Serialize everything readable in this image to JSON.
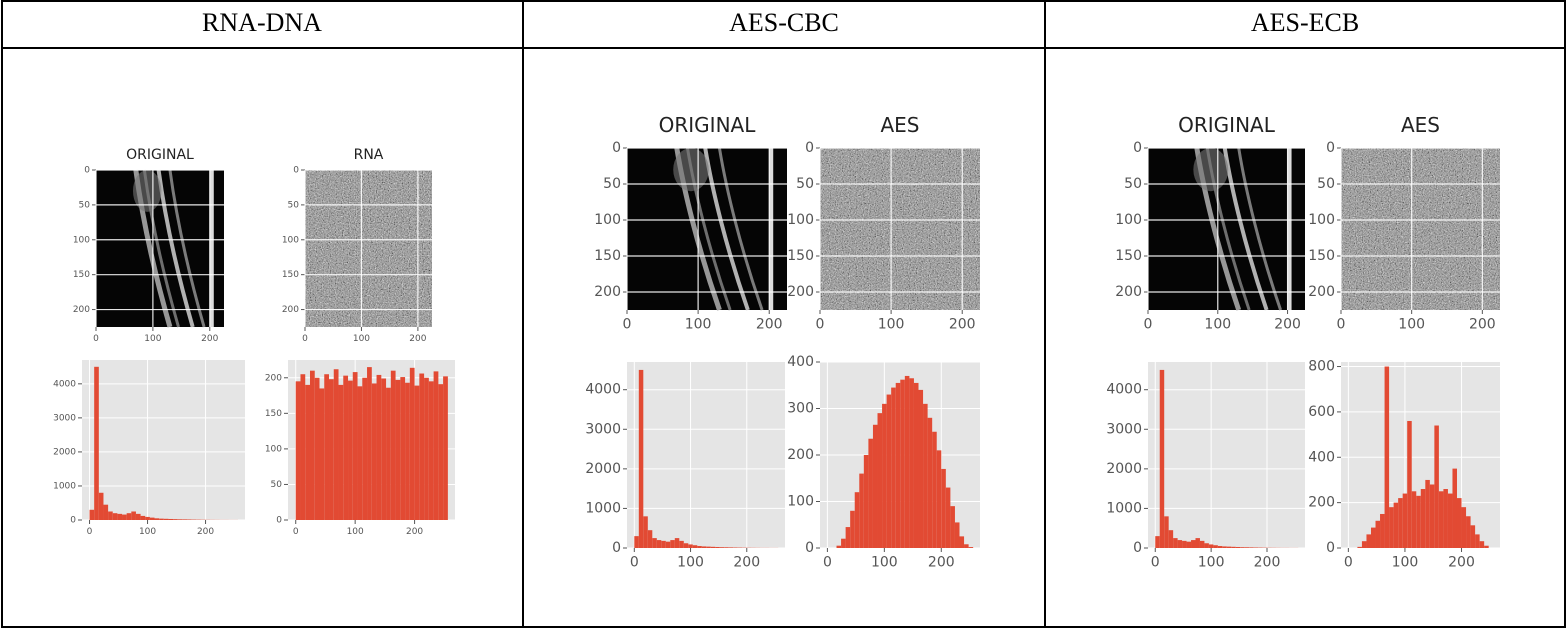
{
  "table": {
    "headers": [
      "RNA-DNA",
      "AES-CBC",
      "AES-ECB"
    ],
    "cells": [
      {
        "images": [
          {
            "title": "ORIGINAL",
            "kind": "original",
            "xlim": [
              0,
              225
            ],
            "ylim": [
              0,
              225
            ],
            "xticks": [
              0,
              100,
              200
            ],
            "yticks": [
              0,
              50,
              100,
              150,
              200
            ]
          },
          {
            "title": "RNA",
            "kind": "noise",
            "xlim": [
              0,
              225
            ],
            "ylim": [
              0,
              225
            ],
            "xticks": [
              0,
              100,
              200
            ],
            "yticks": [
              0,
              50,
              100,
              150,
              200
            ]
          }
        ],
        "histograms": [
          {
            "xlim": [
              -13,
              268
            ],
            "ylim": [
              0,
              4700
            ],
            "xticks": [
              0,
              100,
              200
            ],
            "yticks": [
              0,
              1000,
              2000,
              3000,
              4000
            ],
            "color": "#e24a33",
            "bins": [
              0,
              8,
              16,
              24,
              32,
              40,
              48,
              56,
              64,
              72,
              80,
              88,
              96,
              104,
              112,
              120,
              128,
              136,
              144,
              152,
              160,
              168,
              176,
              184,
              192,
              200,
              208,
              216,
              224,
              232,
              240,
              248,
              256
            ],
            "counts": [
              300,
              4500,
              800,
              450,
              250,
              200,
              180,
              160,
              200,
              250,
              180,
              120,
              90,
              70,
              50,
              40,
              35,
              30,
              25,
              20,
              18,
              15,
              12,
              10,
              8,
              6,
              5,
              4,
              3,
              3,
              2,
              2
            ]
          },
          {
            "xlim": [
              -13,
              268
            ],
            "ylim": [
              0,
              225
            ],
            "xticks": [
              0,
              100,
              200
            ],
            "yticks": [
              0,
              50,
              100,
              150,
              200
            ],
            "color": "#e24a33",
            "bins": [
              0,
              8,
              16,
              24,
              32,
              40,
              48,
              56,
              64,
              72,
              80,
              88,
              96,
              104,
              112,
              120,
              128,
              136,
              144,
              152,
              160,
              168,
              176,
              184,
              192,
              200,
              208,
              216,
              224,
              232,
              240,
              248,
              256
            ],
            "counts": [
              195,
              205,
              190,
              210,
              200,
              185,
              205,
              198,
              212,
              190,
              203,
              196,
              208,
              188,
              200,
              215,
              192,
              204,
              199,
              186,
              210,
              197,
              201,
              193,
              214,
              189,
              206,
              200,
              195,
              209,
              191,
              202
            ]
          }
        ]
      },
      {
        "images": [
          {
            "title": "ORIGINAL",
            "kind": "original",
            "xlim": [
              0,
              225
            ],
            "ylim": [
              0,
              225
            ],
            "xticks": [
              0,
              100,
              200
            ],
            "yticks": [
              0,
              50,
              100,
              150,
              200
            ]
          },
          {
            "title": "AES",
            "kind": "noise",
            "xlim": [
              0,
              225
            ],
            "ylim": [
              0,
              225
            ],
            "xticks": [
              0,
              100,
              200
            ],
            "yticks": [
              0,
              50,
              100,
              150,
              200
            ]
          }
        ],
        "histograms": [
          {
            "xlim": [
              -13,
              268
            ],
            "ylim": [
              0,
              4700
            ],
            "xticks": [
              0,
              100,
              200
            ],
            "yticks": [
              0,
              1000,
              2000,
              3000,
              4000
            ],
            "color": "#e24a33",
            "bins": [
              0,
              8,
              16,
              24,
              32,
              40,
              48,
              56,
              64,
              72,
              80,
              88,
              96,
              104,
              112,
              120,
              128,
              136,
              144,
              152,
              160,
              168,
              176,
              184,
              192,
              200,
              208,
              216,
              224,
              232,
              240,
              248,
              256
            ],
            "counts": [
              300,
              4500,
              800,
              450,
              250,
              200,
              180,
              160,
              200,
              250,
              180,
              120,
              90,
              70,
              50,
              40,
              35,
              30,
              25,
              20,
              18,
              15,
              12,
              10,
              8,
              6,
              5,
              4,
              3,
              3,
              2,
              2
            ]
          },
          {
            "xlim": [
              -13,
              268
            ],
            "ylim": [
              0,
              400
            ],
            "xticks": [
              0,
              100,
              200
            ],
            "yticks": [
              0,
              100,
              200,
              300,
              400
            ],
            "color": "#e24a33",
            "bins": [
              0,
              8,
              16,
              24,
              32,
              40,
              48,
              56,
              64,
              72,
              80,
              88,
              96,
              104,
              112,
              120,
              128,
              136,
              144,
              152,
              160,
              168,
              176,
              184,
              192,
              200,
              208,
              216,
              224,
              232,
              240,
              248,
              256
            ],
            "counts": [
              0,
              0,
              5,
              20,
              45,
              80,
              120,
              160,
              200,
              235,
              265,
              290,
              310,
              330,
              345,
              355,
              362,
              370,
              365,
              355,
              340,
              310,
              280,
              250,
              210,
              170,
              130,
              90,
              55,
              25,
              8,
              2
            ]
          }
        ]
      },
      {
        "images": [
          {
            "title": "ORIGINAL",
            "kind": "original",
            "xlim": [
              0,
              225
            ],
            "ylim": [
              0,
              225
            ],
            "xticks": [
              0,
              100,
              200
            ],
            "yticks": [
              0,
              50,
              100,
              150,
              200
            ]
          },
          {
            "title": "AES",
            "kind": "noise",
            "xlim": [
              0,
              225
            ],
            "ylim": [
              0,
              225
            ],
            "xticks": [
              0,
              100,
              200
            ],
            "yticks": [
              0,
              50,
              100,
              150,
              200
            ]
          }
        ],
        "histograms": [
          {
            "xlim": [
              -13,
              268
            ],
            "ylim": [
              0,
              4700
            ],
            "xticks": [
              0,
              100,
              200
            ],
            "yticks": [
              0,
              1000,
              2000,
              3000,
              4000
            ],
            "color": "#e24a33",
            "bins": [
              0,
              8,
              16,
              24,
              32,
              40,
              48,
              56,
              64,
              72,
              80,
              88,
              96,
              104,
              112,
              120,
              128,
              136,
              144,
              152,
              160,
              168,
              176,
              184,
              192,
              200,
              208,
              216,
              224,
              232,
              240,
              248,
              256
            ],
            "counts": [
              300,
              4500,
              800,
              450,
              250,
              200,
              180,
              160,
              200,
              250,
              180,
              120,
              90,
              70,
              50,
              40,
              35,
              30,
              25,
              20,
              18,
              15,
              12,
              10,
              8,
              6,
              5,
              4,
              3,
              3,
              2,
              2
            ]
          },
          {
            "xlim": [
              -13,
              268
            ],
            "ylim": [
              0,
              820
            ],
            "xticks": [
              0,
              100,
              200
            ],
            "yticks": [
              0,
              200,
              400,
              600,
              800
            ],
            "color": "#e24a33",
            "bins": [
              0,
              8,
              16,
              24,
              32,
              40,
              48,
              56,
              64,
              72,
              80,
              88,
              96,
              104,
              112,
              120,
              128,
              136,
              144,
              152,
              160,
              168,
              176,
              184,
              192,
              200,
              208,
              216,
              224,
              232,
              240,
              248,
              256
            ],
            "counts": [
              0,
              0,
              5,
              30,
              60,
              90,
              120,
              150,
              800,
              180,
              200,
              220,
              240,
              560,
              250,
              230,
              260,
              300,
              280,
              540,
              250,
              260,
              240,
              350,
              220,
              180,
              140,
              100,
              60,
              30,
              10,
              0
            ]
          }
        ]
      }
    ]
  }
}
